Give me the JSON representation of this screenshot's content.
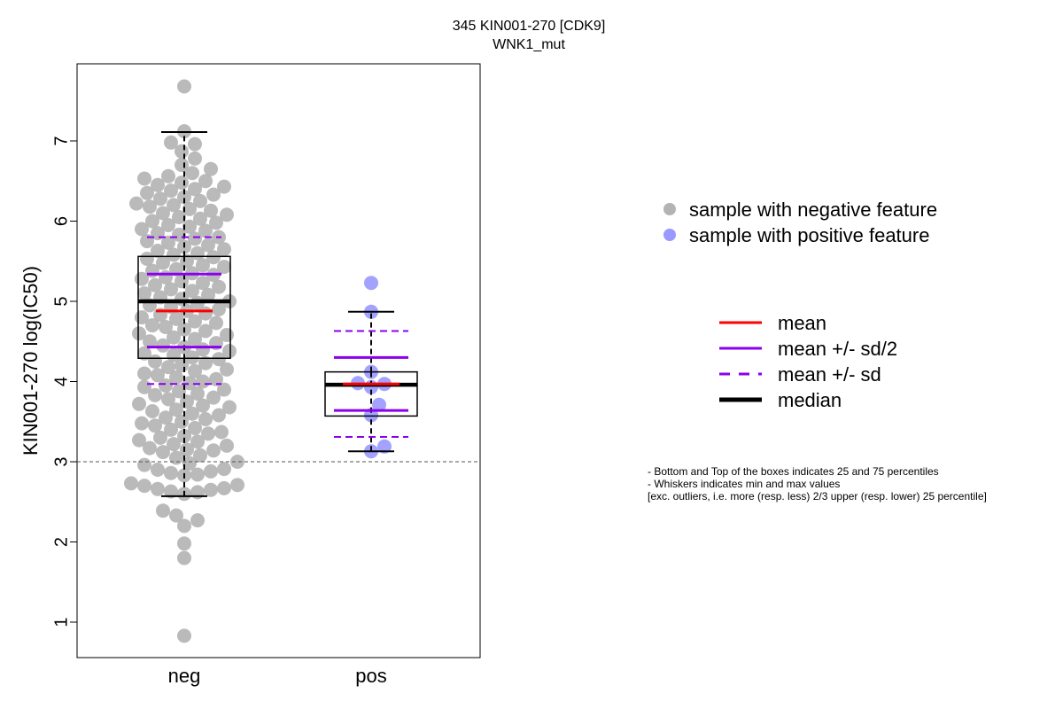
{
  "chart_data": {
    "type": "box",
    "title": "345 KIN001-270 [CDK9]",
    "subtitle": "WNK1_mut",
    "ylabel": "KIN001-270 log(IC50)",
    "xlabel": "",
    "categories": [
      "neg",
      "pos"
    ],
    "yticks": [
      1,
      2,
      3,
      4,
      5,
      6,
      7
    ],
    "ylim": [
      0.6,
      7.9
    ],
    "reference_line": 3,
    "groups": [
      {
        "name": "neg",
        "q1": 4.29,
        "median": 5.0,
        "q3": 5.56,
        "whisker_low": 2.57,
        "whisker_high": 7.11,
        "mean": 4.88,
        "mean_minus_half_sd": 4.43,
        "mean_plus_half_sd": 5.34,
        "mean_minus_sd": 3.97,
        "mean_plus_sd": 5.8,
        "points": [
          0.83,
          1.8,
          1.98,
          2.2,
          2.27,
          2.33,
          2.39,
          2.6,
          2.62,
          2.63,
          2.65,
          2.66,
          2.67,
          2.7,
          2.71,
          2.73,
          2.83,
          2.84,
          2.86,
          2.88,
          2.9,
          2.91,
          2.96,
          2.98,
          3.0,
          3.05,
          3.08,
          3.12,
          3.14,
          3.15,
          3.17,
          3.2,
          3.22,
          3.25,
          3.27,
          3.3,
          3.32,
          3.35,
          3.37,
          3.4,
          3.42,
          3.45,
          3.48,
          3.5,
          3.53,
          3.55,
          3.58,
          3.6,
          3.63,
          3.65,
          3.68,
          3.7,
          3.72,
          3.75,
          3.78,
          3.8,
          3.83,
          3.85,
          3.88,
          3.9,
          3.93,
          3.95,
          3.98,
          4.0,
          4.03,
          4.05,
          4.08,
          4.1,
          4.13,
          4.15,
          4.18,
          4.2,
          4.23,
          4.25,
          4.28,
          4.3,
          4.33,
          4.35,
          4.38,
          4.4,
          4.43,
          4.45,
          4.48,
          4.5,
          4.53,
          4.55,
          4.58,
          4.6,
          4.63,
          4.65,
          4.68,
          4.7,
          4.73,
          4.75,
          4.78,
          4.8,
          4.83,
          4.85,
          4.88,
          4.9,
          4.93,
          4.95,
          4.98,
          5.0,
          5.03,
          5.05,
          5.08,
          5.1,
          5.13,
          5.15,
          5.18,
          5.2,
          5.23,
          5.25,
          5.28,
          5.3,
          5.33,
          5.35,
          5.38,
          5.4,
          5.43,
          5.45,
          5.48,
          5.5,
          5.53,
          5.55,
          5.58,
          5.6,
          5.63,
          5.65,
          5.68,
          5.7,
          5.73,
          5.75,
          5.78,
          5.8,
          5.83,
          5.85,
          5.88,
          5.9,
          5.93,
          5.95,
          5.98,
          6.0,
          6.03,
          6.05,
          6.08,
          6.1,
          6.13,
          6.15,
          6.18,
          6.2,
          6.22,
          6.25,
          6.28,
          6.3,
          6.33,
          6.35,
          6.38,
          6.4,
          6.43,
          6.45,
          6.48,
          6.5,
          6.53,
          6.56,
          6.6,
          6.65,
          6.7,
          6.78,
          6.87,
          6.96,
          6.98,
          7.12,
          7.68
        ]
      },
      {
        "name": "pos",
        "q1": 3.57,
        "median": 3.96,
        "q3": 4.12,
        "whisker_low": 3.13,
        "whisker_high": 4.87,
        "mean": 3.97,
        "mean_minus_half_sd": 3.64,
        "mean_plus_half_sd": 4.3,
        "mean_minus_sd": 3.31,
        "mean_plus_sd": 4.63,
        "points": [
          3.13,
          3.19,
          3.58,
          3.71,
          3.93,
          3.97,
          3.98,
          4.12,
          4.87,
          5.23
        ]
      }
    ],
    "legend_points": [
      {
        "label": "sample with negative feature",
        "color": "#b3b3b3"
      },
      {
        "label": "sample with positive feature",
        "color": "#9999ff"
      }
    ],
    "legend_lines": [
      {
        "label": "mean",
        "color": "#ff0000",
        "style": "solid"
      },
      {
        "label": "mean +/- sd/2",
        "color": "#8b00ee",
        "style": "solid"
      },
      {
        "label": "mean +/- sd",
        "color": "#8b00ee",
        "style": "dashed"
      },
      {
        "label": "median",
        "color": "#000000",
        "style": "thick"
      }
    ],
    "notes": [
      "- Bottom and Top of the boxes indicates 25 and 75 percentiles",
      "- Whiskers indicates min and max values",
      "[exc. outliers, i.e. more (resp. less) 2/3 upper (resp. lower) 25 percentile]"
    ],
    "colors": {
      "neg_point": "#b3b3b3",
      "pos_point": "#9999ff",
      "mean": "#ff0000",
      "sd": "#8b00ee",
      "refline": "#555555"
    }
  }
}
